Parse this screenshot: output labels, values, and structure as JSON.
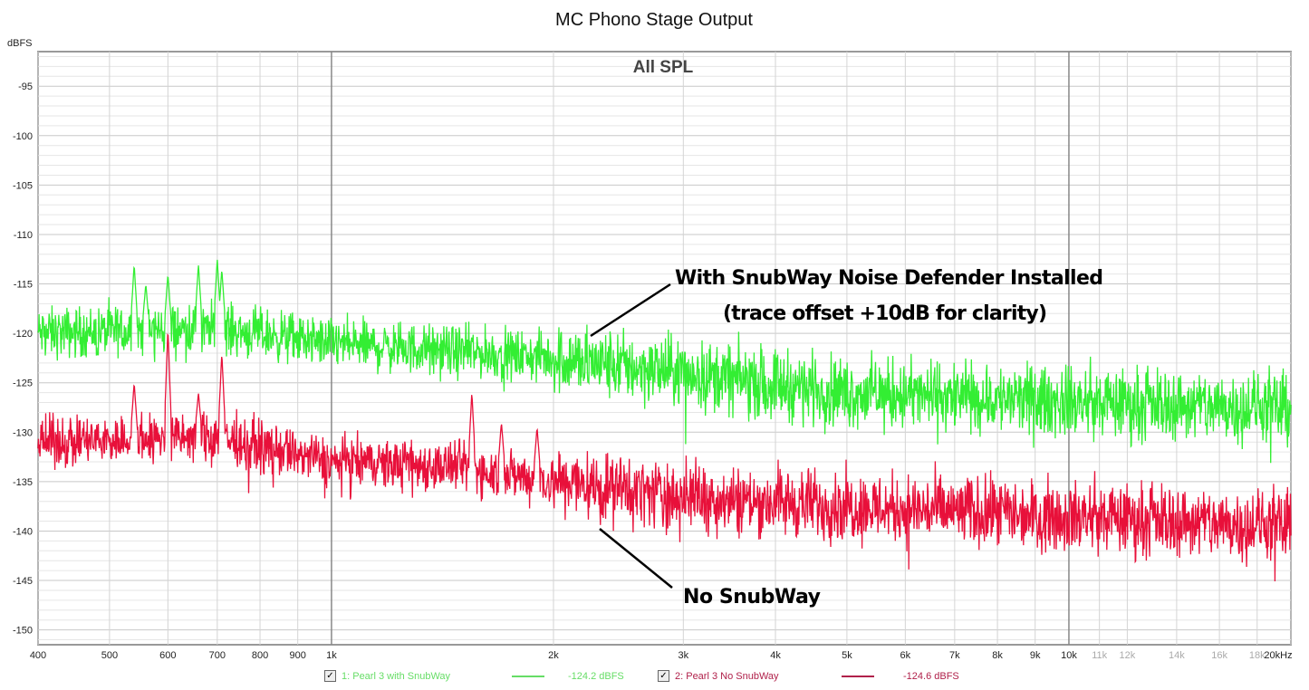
{
  "chart_data": {
    "type": "line",
    "title": "MC Phono Stage Output",
    "subtitle": "All SPL",
    "ylabel": "dBFS",
    "xlabel": "",
    "xscale": "log",
    "xlim": [
      400,
      20000
    ],
    "ylim": [
      -151.5,
      -91.5
    ],
    "grid": true,
    "y_ticks": [
      -95,
      -100,
      -105,
      -110,
      -115,
      -120,
      -125,
      -130,
      -135,
      -140,
      -145,
      -150
    ],
    "x_ticks": [
      {
        "v": 400,
        "label": "400",
        "light": false
      },
      {
        "v": 500,
        "label": "500",
        "light": false
      },
      {
        "v": 600,
        "label": "600",
        "light": false
      },
      {
        "v": 700,
        "label": "700",
        "light": false
      },
      {
        "v": 800,
        "label": "800",
        "light": false
      },
      {
        "v": 900,
        "label": "900",
        "light": false
      },
      {
        "v": 1000,
        "label": "1k",
        "light": false
      },
      {
        "v": 2000,
        "label": "2k",
        "light": false
      },
      {
        "v": 3000,
        "label": "3k",
        "light": false
      },
      {
        "v": 4000,
        "label": "4k",
        "light": false
      },
      {
        "v": 5000,
        "label": "5k",
        "light": false
      },
      {
        "v": 6000,
        "label": "6k",
        "light": false
      },
      {
        "v": 7000,
        "label": "7k",
        "light": false
      },
      {
        "v": 8000,
        "label": "8k",
        "light": false
      },
      {
        "v": 9000,
        "label": "9k",
        "light": false
      },
      {
        "v": 10000,
        "label": "10k",
        "light": false
      },
      {
        "v": 11000,
        "label": "11k",
        "light": true
      },
      {
        "v": 12000,
        "label": "12k",
        "light": true
      },
      {
        "v": 14000,
        "label": "14k",
        "light": true
      },
      {
        "v": 16000,
        "label": "16k",
        "light": true
      },
      {
        "v": 18000,
        "label": "18k",
        "light": true
      },
      {
        "v": 20000,
        "label": "20kHz",
        "light": false
      }
    ],
    "series": [
      {
        "name": "1: Pearl 3 with SnubWay",
        "value_label": "-124.2 dBFS",
        "color": "#33ee33",
        "legend_color": "#66dd66",
        "envelope": [
          [
            400,
            -120
          ],
          [
            700,
            -119.5
          ],
          [
            1000,
            -121
          ],
          [
            2000,
            -122.5
          ],
          [
            3000,
            -124
          ],
          [
            5000,
            -126
          ],
          [
            10000,
            -127
          ],
          [
            20000,
            -127.5
          ]
        ],
        "noise_db": 2.5,
        "peaks": [
          [
            540,
            -113
          ],
          [
            560,
            -115
          ],
          [
            600,
            -114
          ],
          [
            660,
            -113
          ],
          [
            700,
            -112.5
          ],
          [
            710,
            -113.5
          ]
        ]
      },
      {
        "name": "2: Pearl 3 No SnubWay",
        "value_label": "-124.6 dBFS",
        "color": "#e8103a",
        "legend_color": "#b0204a",
        "envelope": [
          [
            400,
            -131
          ],
          [
            700,
            -130.5
          ],
          [
            1000,
            -133
          ],
          [
            1500,
            -133.5
          ],
          [
            2000,
            -135
          ],
          [
            3000,
            -136.5
          ],
          [
            5000,
            -137.5
          ],
          [
            10000,
            -138.5
          ],
          [
            20000,
            -139.5
          ]
        ],
        "noise_db": 2.5,
        "peaks": [
          [
            540,
            -125
          ],
          [
            600,
            -119.5
          ],
          [
            660,
            -126
          ],
          [
            710,
            -122
          ],
          [
            1550,
            -126
          ],
          [
            1700,
            -129
          ],
          [
            1900,
            -129.5
          ]
        ]
      }
    ],
    "annotations": [
      {
        "text": "With SnubWay Noise Defender Installed",
        "freq": 2230,
        "db": -120.5
      },
      {
        "text": "(trace offset +10dB for clarity)"
      },
      {
        "text": "No SnubWay",
        "freq": 2300,
        "db": -140
      }
    ]
  }
}
